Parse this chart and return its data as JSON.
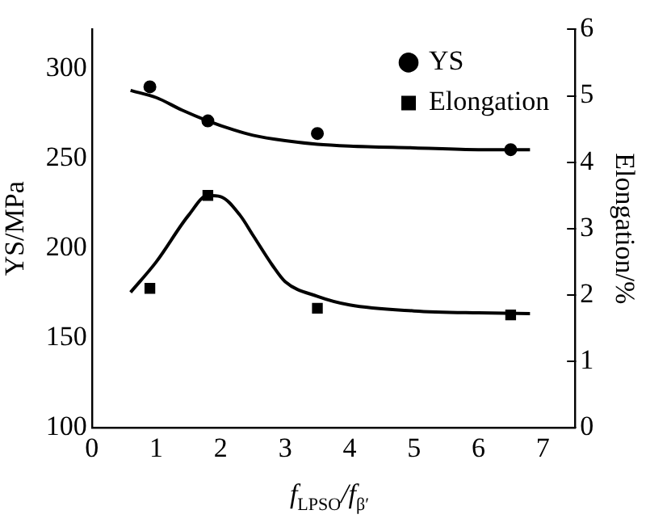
{
  "chart_data": {
    "type": "scatter",
    "xlabel": "f$_{LPSO}$/f$_{β′}$",
    "ylabel": "YS/MPa",
    "y2label": "Elongation/%",
    "xlim": [
      0,
      7.5
    ],
    "xticks": [
      0,
      1,
      2,
      3,
      4,
      5,
      6,
      7
    ],
    "ylim": [
      100,
      322
    ],
    "yticks": [
      100,
      150,
      200,
      250,
      300
    ],
    "y2lim": [
      0,
      6
    ],
    "y2ticks": [
      0,
      1,
      2,
      3,
      4,
      5,
      6
    ],
    "grid": false,
    "legend": "top right",
    "series": [
      {
        "name": "YS",
        "marker": "circle",
        "color": "#000000",
        "x": [
          0.9,
          1.8,
          3.5,
          6.5
        ],
        "values": [
          290,
          271,
          264,
          255
        ]
      },
      {
        "type": "line",
        "marker": "none",
        "color": "#000000",
        "x": [
          0.6,
          1.0,
          1.4,
          1.8,
          2.2,
          2.5,
          3.0,
          3.5,
          4.0,
          5.0,
          6.0,
          6.8
        ],
        "values": [
          288,
          284,
          277,
          271,
          266,
          263,
          260,
          258,
          257,
          256,
          255,
          255
        ]
      },
      {
        "name": "Elongation",
        "marker": "square",
        "axis": "y2",
        "color": "#000000",
        "x": [
          0.9,
          1.8,
          3.5,
          6.5
        ],
        "values": [
          2.1,
          3.5,
          1.8,
          1.7
        ]
      },
      {
        "type": "line",
        "marker": "none",
        "axis": "y2",
        "color": "#000000",
        "x": [
          0.6,
          1.0,
          1.5,
          1.8,
          2.0,
          2.3,
          2.5,
          2.8,
          3.0,
          3.5,
          4.0,
          5.0,
          6.0,
          6.8
        ],
        "values": [
          2.04,
          2.5,
          3.2,
          3.5,
          3.48,
          3.2,
          2.9,
          2.45,
          2.2,
          1.98,
          1.85,
          1.76,
          1.73,
          1.72
        ]
      }
    ]
  }
}
